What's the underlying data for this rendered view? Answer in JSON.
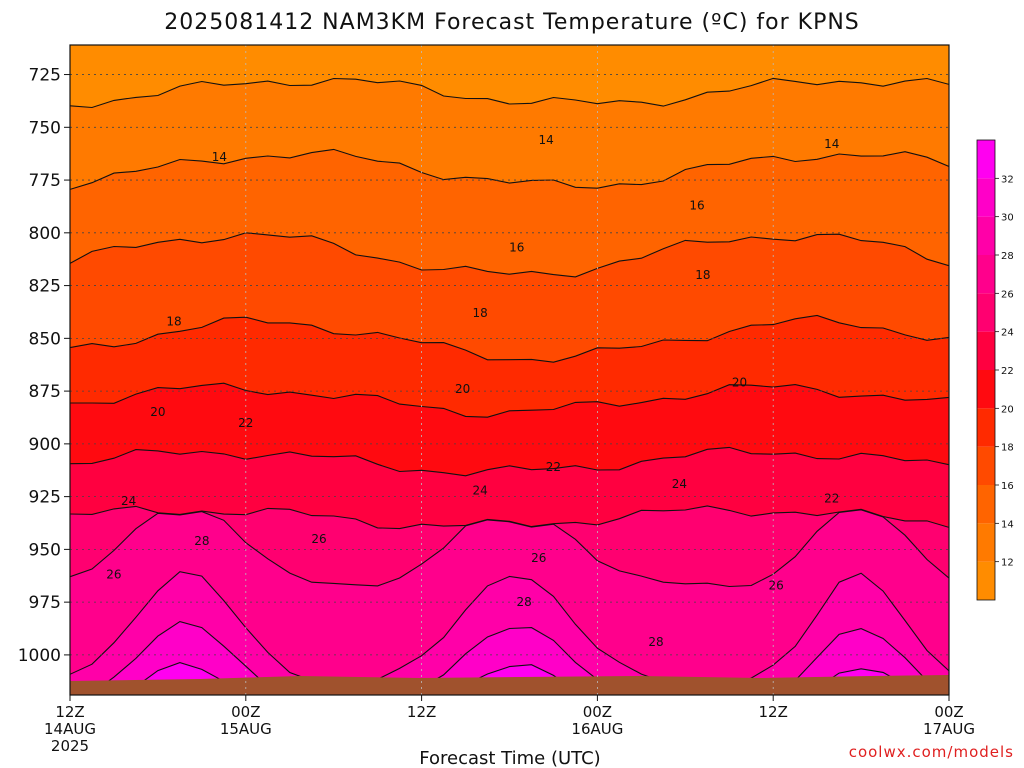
{
  "title": "2025081412 NAM3KM Forecast Temperature (ºC) for KPNS",
  "credit": "coolwx.com/models",
  "chart_data": {
    "type": "heatmap",
    "title": "2025081412 NAM3KM Forecast Temperature (ºC) for KPNS",
    "xlabel": "Forecast Time (UTC)",
    "ylabel": "",
    "y_ticks": [
      "725",
      "750",
      "775",
      "800",
      "825",
      "850",
      "875",
      "900",
      "925",
      "950",
      "975",
      "1000"
    ],
    "y_values": [
      725,
      750,
      775,
      800,
      825,
      850,
      875,
      900,
      925,
      950,
      975,
      1000
    ],
    "ylim": [
      711,
      1019
    ],
    "x_ticks": [
      {
        "hour": 0,
        "line1": "12Z",
        "line2": "14AUG",
        "line3": "2025"
      },
      {
        "hour": 12,
        "line1": "00Z",
        "line2": "15AUG",
        "line3": ""
      },
      {
        "hour": 24,
        "line1": "12Z",
        "line2": "",
        "line3": ""
      },
      {
        "hour": 36,
        "line1": "00Z",
        "line2": "16AUG",
        "line3": ""
      },
      {
        "hour": 48,
        "line1": "12Z",
        "line2": "",
        "line3": ""
      },
      {
        "hour": 60,
        "line1": "00Z",
        "line2": "17AUG",
        "line3": ""
      }
    ],
    "xlim": [
      0,
      60
    ],
    "grid": true,
    "colorbar": {
      "ticks": [
        "12",
        "14",
        "16",
        "18",
        "20",
        "22",
        "24",
        "26",
        "28",
        "30",
        "32"
      ],
      "levels": [
        10,
        12,
        14,
        16,
        18,
        20,
        22,
        24,
        26,
        28,
        30,
        32,
        34
      ],
      "colors": [
        "#ff8c00",
        "#ff7a00",
        "#ff6400",
        "#ff4a00",
        "#ff2a00",
        "#ff0a10",
        "#ff0040",
        "#ff0070",
        "#ff008c",
        "#ff00a8",
        "#ff00c8",
        "#ff00f0"
      ]
    },
    "contour_labels": [
      {
        "text": "14",
        "hour": 10.2,
        "p": 764
      },
      {
        "text": "14",
        "hour": 32.5,
        "p": 756
      },
      {
        "text": "14",
        "hour": 52.0,
        "p": 758
      },
      {
        "text": "16",
        "hour": 30.5,
        "p": 807
      },
      {
        "text": "16",
        "hour": 42.8,
        "p": 787
      },
      {
        "text": "18",
        "hour": 7.1,
        "p": 842
      },
      {
        "text": "18",
        "hour": 28.0,
        "p": 838
      },
      {
        "text": "18",
        "hour": 43.2,
        "p": 820
      },
      {
        "text": "20",
        "hour": 6.0,
        "p": 885
      },
      {
        "text": "20",
        "hour": 26.8,
        "p": 874
      },
      {
        "text": "20",
        "hour": 45.7,
        "p": 871
      },
      {
        "text": "22",
        "hour": 12.0,
        "p": 890
      },
      {
        "text": "22",
        "hour": 33.0,
        "p": 911
      },
      {
        "text": "22",
        "hour": 52.0,
        "p": 926
      },
      {
        "text": "24",
        "hour": 4.0,
        "p": 927
      },
      {
        "text": "24",
        "hour": 28.0,
        "p": 922
      },
      {
        "text": "24",
        "hour": 41.6,
        "p": 919
      },
      {
        "text": "26",
        "hour": 3.0,
        "p": 962
      },
      {
        "text": "26",
        "hour": 17.0,
        "p": 945
      },
      {
        "text": "26",
        "hour": 32.0,
        "p": 954
      },
      {
        "text": "26",
        "hour": 48.2,
        "p": 967
      },
      {
        "text": "28",
        "hour": 9.0,
        "p": 946
      },
      {
        "text": "28",
        "hour": 31.0,
        "p": 975
      },
      {
        "text": "28",
        "hour": 40.0,
        "p": 994
      }
    ]
  }
}
